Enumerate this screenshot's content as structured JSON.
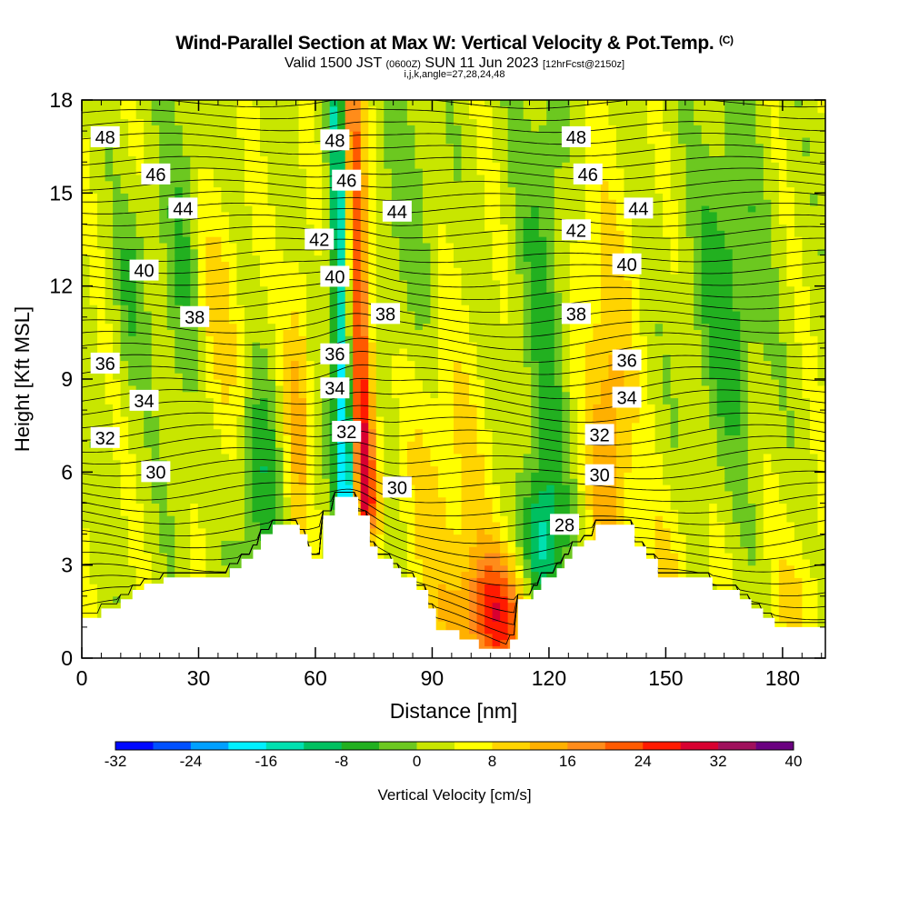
{
  "header": {
    "title": "Wind-Parallel Section at Max W: Vertical Velocity & Pot.Temp.",
    "title_mark": "(C)",
    "subtitle_main": "Valid 1500 JST",
    "subtitle_zulu": "(0600Z)",
    "subtitle_date": "SUN 11 Jun 2023",
    "subtitle_fcst": "[12hrFcst@2150z]",
    "indices": "i,j,k,angle=27,28,24,48"
  },
  "chart_data": {
    "type": "heatmap",
    "xlabel": "Distance [nm]",
    "ylabel": "Height [Kft MSL]",
    "xlim": [
      0,
      191
    ],
    "ylim": [
      0,
      18
    ],
    "x_ticks": [
      0,
      30,
      60,
      90,
      120,
      150,
      180
    ],
    "y_ticks": [
      0,
      3,
      6,
      9,
      12,
      15,
      18
    ],
    "colorbar": {
      "label": "Vertical Velocity [cm/s]",
      "ticks": [
        -32,
        -24,
        -16,
        -8,
        0,
        8,
        16,
        24,
        32,
        40
      ],
      "bins": [
        -32,
        -28,
        -24,
        -20,
        -16,
        -12,
        -8,
        -4,
        0,
        4,
        8,
        12,
        16,
        20,
        24,
        28,
        32,
        36,
        40
      ],
      "colors": [
        "#0008ff",
        "#0050ff",
        "#00a0ff",
        "#00f0ff",
        "#00e0b0",
        "#00c060",
        "#22b020",
        "#6cc820",
        "#c8e600",
        "#ffff00",
        "#ffd400",
        "#ffb000",
        "#ff8c1a",
        "#ff5a00",
        "#ff1a00",
        "#d80030",
        "#a0105c",
        "#6a0080"
      ]
    },
    "terrain": [
      [
        0,
        1.3
      ],
      [
        5,
        1.3
      ],
      [
        5,
        1.6
      ],
      [
        10,
        1.6
      ],
      [
        10,
        1.9
      ],
      [
        13,
        1.9
      ],
      [
        13,
        2.2
      ],
      [
        16,
        2.2
      ],
      [
        16,
        2.4
      ],
      [
        21,
        2.4
      ],
      [
        21,
        2.6
      ],
      [
        38,
        2.6
      ],
      [
        38,
        2.9
      ],
      [
        41,
        2.9
      ],
      [
        41,
        3.2
      ],
      [
        44,
        3.2
      ],
      [
        44,
        3.5
      ],
      [
        46,
        3.5
      ],
      [
        46,
        4.0
      ],
      [
        49,
        4.0
      ],
      [
        49,
        4.3
      ],
      [
        56,
        4.3
      ],
      [
        56,
        4.0
      ],
      [
        58,
        4.0
      ],
      [
        58,
        3.6
      ],
      [
        59,
        3.6
      ],
      [
        59,
        3.2
      ],
      [
        62,
        3.2
      ],
      [
        62,
        4.6
      ],
      [
        65,
        4.6
      ],
      [
        65,
        5.2
      ],
      [
        71,
        5.2
      ],
      [
        71,
        4.6
      ],
      [
        74,
        4.6
      ],
      [
        74,
        3.6
      ],
      [
        76,
        3.6
      ],
      [
        76,
        3.2
      ],
      [
        80,
        3.2
      ],
      [
        80,
        2.9
      ],
      [
        82,
        2.9
      ],
      [
        82,
        2.6
      ],
      [
        86,
        2.6
      ],
      [
        86,
        2.2
      ],
      [
        89,
        2.2
      ],
      [
        89,
        1.6
      ],
      [
        91,
        1.6
      ],
      [
        91,
        0.9
      ],
      [
        97,
        0.9
      ],
      [
        97,
        0.6
      ],
      [
        102,
        0.6
      ],
      [
        102,
        0.3
      ],
      [
        110,
        0.3
      ],
      [
        110,
        0.6
      ],
      [
        112,
        0.6
      ],
      [
        112,
        1.9
      ],
      [
        116,
        1.9
      ],
      [
        116,
        2.2
      ],
      [
        118,
        2.2
      ],
      [
        118,
        2.6
      ],
      [
        122,
        2.6
      ],
      [
        122,
        2.9
      ],
      [
        124,
        2.9
      ],
      [
        124,
        3.2
      ],
      [
        126,
        3.2
      ],
      [
        126,
        3.6
      ],
      [
        129,
        3.6
      ],
      [
        129,
        3.8
      ],
      [
        132,
        3.8
      ],
      [
        132,
        4.3
      ],
      [
        142,
        4.3
      ],
      [
        142,
        3.6
      ],
      [
        145,
        3.6
      ],
      [
        145,
        3.2
      ],
      [
        148,
        3.2
      ],
      [
        148,
        2.6
      ],
      [
        162,
        2.6
      ],
      [
        162,
        2.2
      ],
      [
        169,
        2.2
      ],
      [
        169,
        1.9
      ],
      [
        172,
        1.9
      ],
      [
        172,
        1.6
      ],
      [
        175,
        1.6
      ],
      [
        175,
        1.3
      ],
      [
        178,
        1.3
      ],
      [
        178,
        1.0
      ],
      [
        184,
        1.0
      ],
      [
        184,
        1.0
      ],
      [
        191,
        1.0
      ]
    ],
    "contours": {
      "variable": "Potential Temperature",
      "labels": [
        {
          "value": 48,
          "x": 6,
          "y": 16.8
        },
        {
          "value": 46,
          "x": 19,
          "y": 15.6
        },
        {
          "value": 44,
          "x": 26,
          "y": 14.5
        },
        {
          "value": 40,
          "x": 16,
          "y": 12.5
        },
        {
          "value": 38,
          "x": 29,
          "y": 11.0
        },
        {
          "value": 36,
          "x": 6,
          "y": 9.5
        },
        {
          "value": 34,
          "x": 16,
          "y": 8.3
        },
        {
          "value": 32,
          "x": 6,
          "y": 7.1
        },
        {
          "value": 30,
          "x": 19,
          "y": 6.0
        },
        {
          "value": 48,
          "x": 65,
          "y": 16.7
        },
        {
          "value": 46,
          "x": 68,
          "y": 15.4
        },
        {
          "value": 44,
          "x": 81,
          "y": 14.4
        },
        {
          "value": 42,
          "x": 61,
          "y": 13.5
        },
        {
          "value": 40,
          "x": 65,
          "y": 12.3
        },
        {
          "value": 38,
          "x": 78,
          "y": 11.1
        },
        {
          "value": 36,
          "x": 65,
          "y": 9.8
        },
        {
          "value": 34,
          "x": 65,
          "y": 8.7
        },
        {
          "value": 32,
          "x": 68,
          "y": 7.3
        },
        {
          "value": 30,
          "x": 81,
          "y": 5.5
        },
        {
          "value": 48,
          "x": 127,
          "y": 16.8
        },
        {
          "value": 46,
          "x": 130,
          "y": 15.6
        },
        {
          "value": 44,
          "x": 143,
          "y": 14.5
        },
        {
          "value": 42,
          "x": 127,
          "y": 13.8
        },
        {
          "value": 40,
          "x": 140,
          "y": 12.7
        },
        {
          "value": 38,
          "x": 127,
          "y": 11.1
        },
        {
          "value": 36,
          "x": 140,
          "y": 9.6
        },
        {
          "value": 34,
          "x": 140,
          "y": 8.4
        },
        {
          "value": 32,
          "x": 133,
          "y": 7.2
        },
        {
          "value": 30,
          "x": 133,
          "y": 5.9
        },
        {
          "value": 28,
          "x": 124,
          "y": 4.3
        }
      ]
    }
  }
}
